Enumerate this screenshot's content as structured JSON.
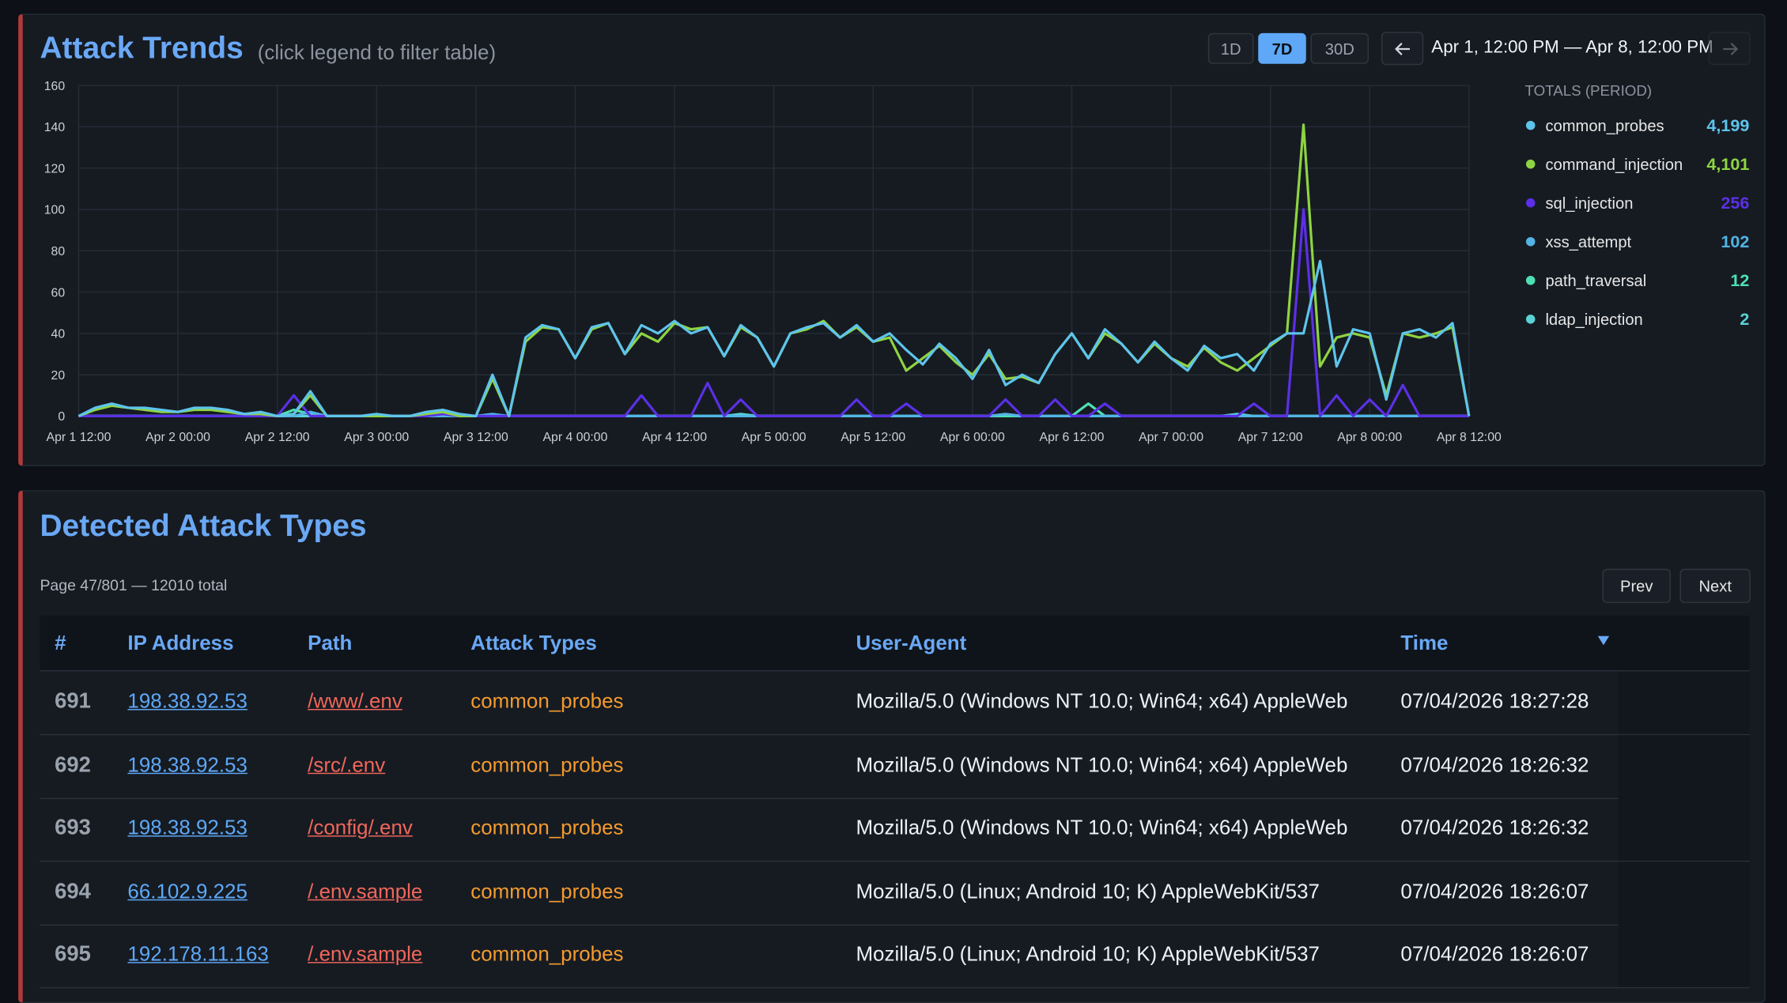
{
  "header": {
    "title": "Attack Trends",
    "subtitle": "(click legend to filter table)",
    "ranges": [
      "1D",
      "7D",
      "30D"
    ],
    "active_range": 1,
    "date_range": "Apr 1, 12:00 PM — Apr 8, 12:00 PM"
  },
  "chart_data": {
    "type": "line",
    "x": [
      "Apr 1 12:00",
      "Apr 1 14:00",
      "Apr 1 16:00",
      "Apr 1 18:00",
      "Apr 1 20:00",
      "Apr 1 22:00",
      "Apr 2 00:00",
      "Apr 2 02:00",
      "Apr 2 04:00",
      "Apr 2 06:00",
      "Apr 2 08:00",
      "Apr 2 10:00",
      "Apr 2 12:00",
      "Apr 2 14:00",
      "Apr 2 16:00",
      "Apr 2 18:00",
      "Apr 2 20:00",
      "Apr 2 22:00",
      "Apr 3 00:00",
      "Apr 3 02:00",
      "Apr 3 04:00",
      "Apr 3 06:00",
      "Apr 3 08:00",
      "Apr 3 10:00",
      "Apr 3 12:00",
      "Apr 3 14:00",
      "Apr 3 16:00",
      "Apr 3 18:00",
      "Apr 3 20:00",
      "Apr 3 22:00",
      "Apr 4 00:00",
      "Apr 4 02:00",
      "Apr 4 04:00",
      "Apr 4 06:00",
      "Apr 4 08:00",
      "Apr 4 10:00",
      "Apr 4 12:00",
      "Apr 4 14:00",
      "Apr 4 16:00",
      "Apr 4 18:00",
      "Apr 4 20:00",
      "Apr 4 22:00",
      "Apr 5 00:00",
      "Apr 5 02:00",
      "Apr 5 04:00",
      "Apr 5 06:00",
      "Apr 5 08:00",
      "Apr 5 10:00",
      "Apr 5 12:00",
      "Apr 5 14:00",
      "Apr 5 16:00",
      "Apr 5 18:00",
      "Apr 5 20:00",
      "Apr 5 22:00",
      "Apr 6 00:00",
      "Apr 6 02:00",
      "Apr 6 04:00",
      "Apr 6 06:00",
      "Apr 6 08:00",
      "Apr 6 10:00",
      "Apr 6 12:00",
      "Apr 6 14:00",
      "Apr 6 16:00",
      "Apr 6 18:00",
      "Apr 6 20:00",
      "Apr 6 22:00",
      "Apr 7 00:00",
      "Apr 7 02:00",
      "Apr 7 04:00",
      "Apr 7 06:00",
      "Apr 7 08:00",
      "Apr 7 10:00",
      "Apr 7 12:00",
      "Apr 7 14:00",
      "Apr 7 16:00",
      "Apr 7 18:00",
      "Apr 7 20:00",
      "Apr 7 22:00",
      "Apr 8 00:00",
      "Apr 8 02:00",
      "Apr 8 04:00",
      "Apr 8 06:00",
      "Apr 8 08:00",
      "Apr 8 10:00",
      "Apr 8 12:00"
    ],
    "xlim": [
      "Apr 1 12:00",
      "Apr 8 12:00"
    ],
    "xticks": [
      "Apr 1 12:00",
      "Apr 2 00:00",
      "Apr 2 12:00",
      "Apr 3 00:00",
      "Apr 3 12:00",
      "Apr 4 00:00",
      "Apr 4 12:00",
      "Apr 5 00:00",
      "Apr 5 12:00",
      "Apr 6 00:00",
      "Apr 6 12:00",
      "Apr 7 00:00",
      "Apr 7 12:00",
      "Apr 8 00:00",
      "Apr 8 12:00"
    ],
    "ylim": [
      0,
      160
    ],
    "yticks": [
      0,
      20,
      40,
      60,
      80,
      100,
      120,
      140,
      160
    ],
    "grid": true,
    "legend": "right",
    "legend_title": "TOTALS (PERIOD)",
    "series": [
      {
        "name": "common_probes",
        "color": "#5ec4ec",
        "total": {
          "value": 4199,
          "label": "4,199"
        },
        "values": [
          0,
          4,
          6,
          4,
          4,
          3,
          2,
          4,
          4,
          3,
          1,
          2,
          0,
          1,
          12,
          0,
          0,
          0,
          1,
          0,
          0,
          2,
          3,
          1,
          0,
          20,
          0,
          38,
          44,
          42,
          28,
          43,
          45,
          30,
          44,
          40,
          46,
          40,
          43,
          29,
          44,
          38,
          24,
          40,
          43,
          45,
          38,
          44,
          36,
          40,
          32,
          25,
          35,
          28,
          18,
          32,
          15,
          20,
          16,
          30,
          40,
          28,
          42,
          35,
          26,
          36,
          28,
          22,
          34,
          28,
          30,
          22,
          35,
          40,
          40,
          75,
          24,
          42,
          40,
          8,
          40,
          42,
          38,
          45,
          0
        ]
      },
      {
        "name": "command_injection",
        "color": "#8ed442",
        "total": {
          "value": 4101,
          "label": "4,101"
        },
        "values": [
          0,
          3,
          5,
          4,
          3,
          2,
          2,
          3,
          3,
          2,
          1,
          1,
          0,
          1,
          10,
          0,
          0,
          0,
          0,
          0,
          0,
          1,
          2,
          0,
          0,
          18,
          0,
          36,
          43,
          42,
          28,
          42,
          45,
          30,
          40,
          36,
          45,
          42,
          43,
          29,
          43,
          38,
          24,
          40,
          42,
          46,
          38,
          43,
          36,
          38,
          22,
          28,
          34,
          26,
          20,
          30,
          18,
          19,
          16,
          30,
          40,
          28,
          40,
          35,
          26,
          35,
          28,
          24,
          33,
          26,
          22,
          28,
          34,
          40,
          141,
          24,
          38,
          40,
          38,
          10,
          40,
          38,
          40,
          43,
          0
        ]
      },
      {
        "name": "sql_injection",
        "color": "#5b30e6",
        "total": {
          "value": 256,
          "label": "256"
        },
        "values": [
          0,
          0,
          0,
          0,
          0,
          0,
          0,
          0,
          0,
          0,
          0,
          0,
          0,
          10,
          0,
          0,
          0,
          0,
          0,
          0,
          0,
          0,
          1,
          0,
          0,
          0,
          0,
          0,
          0,
          0,
          0,
          0,
          0,
          0,
          10,
          0,
          0,
          0,
          16,
          0,
          8,
          0,
          0,
          0,
          0,
          0,
          0,
          8,
          0,
          0,
          6,
          0,
          0,
          0,
          0,
          0,
          8,
          0,
          0,
          8,
          0,
          0,
          6,
          0,
          0,
          0,
          0,
          0,
          0,
          0,
          0,
          6,
          0,
          0,
          100,
          0,
          10,
          0,
          8,
          0,
          15,
          0,
          0,
          0,
          0
        ]
      },
      {
        "name": "xss_attempt",
        "color": "#52b4e6",
        "total": {
          "value": 102,
          "label": "102"
        },
        "values": [
          0,
          0,
          0,
          0,
          0,
          0,
          0,
          0,
          0,
          0,
          0,
          0,
          0,
          0,
          2,
          0,
          0,
          0,
          0,
          0,
          0,
          0,
          0,
          0,
          0,
          1,
          0,
          0,
          0,
          0,
          0,
          0,
          0,
          0,
          0,
          0,
          0,
          0,
          0,
          0,
          0,
          0,
          0,
          0,
          0,
          0,
          0,
          0,
          0,
          0,
          0,
          0,
          0,
          0,
          0,
          0,
          1,
          0,
          0,
          0,
          0,
          0,
          0,
          0,
          0,
          0,
          0,
          0,
          0,
          0,
          0,
          0,
          0,
          0,
          0,
          0,
          0,
          0,
          0,
          0,
          0,
          0,
          0,
          0,
          0
        ]
      },
      {
        "name": "path_traversal",
        "color": "#4ee0b2",
        "total": {
          "value": 12,
          "label": "12"
        },
        "values": [
          0,
          0,
          0,
          0,
          0,
          0,
          0,
          0,
          0,
          0,
          0,
          0,
          0,
          3,
          1,
          0,
          0,
          0,
          0,
          0,
          0,
          0,
          0,
          0,
          0,
          0,
          0,
          0,
          0,
          0,
          0,
          0,
          0,
          0,
          0,
          0,
          0,
          0,
          0,
          0,
          0,
          0,
          0,
          0,
          0,
          0,
          0,
          0,
          0,
          0,
          0,
          0,
          0,
          0,
          0,
          0,
          0,
          0,
          0,
          0,
          0,
          6,
          0,
          0,
          0,
          0,
          0,
          0,
          0,
          0,
          0,
          0,
          0,
          0,
          0,
          0,
          0,
          0,
          0,
          0,
          0,
          0,
          0,
          0,
          0
        ]
      },
      {
        "name": "ldap_injection",
        "color": "#5ad2d6",
        "total": {
          "value": 2,
          "label": "2"
        },
        "values": [
          0,
          0,
          0,
          0,
          0,
          0,
          0,
          0,
          0,
          0,
          0,
          0,
          0,
          0,
          0,
          0,
          0,
          0,
          0,
          0,
          0,
          0,
          0,
          0,
          0,
          0,
          0,
          0,
          0,
          0,
          0,
          0,
          0,
          0,
          0,
          0,
          0,
          0,
          0,
          0,
          1,
          0,
          0,
          0,
          0,
          0,
          0,
          0,
          0,
          0,
          0,
          0,
          0,
          0,
          0,
          0,
          0,
          0,
          0,
          0,
          0,
          0,
          0,
          0,
          0,
          0,
          0,
          0,
          0,
          0,
          1,
          0,
          0,
          0,
          0,
          0,
          0,
          0,
          0,
          0,
          0,
          0,
          0,
          0,
          0
        ]
      }
    ]
  },
  "table_section": {
    "title": "Detected Attack Types",
    "page_info": "Page 47/801 — 12010 total",
    "prev": "Prev",
    "next": "Next",
    "columns": [
      "#",
      "IP Address",
      "Path",
      "Attack Types",
      "User-Agent",
      "Time"
    ],
    "rows": [
      [
        691,
        "198.38.92.53",
        "/www/.env",
        "common_probes",
        "Mozilla/5.0 (Windows NT 10.0; Win64; x64) AppleWeb",
        "07/04/2026 18:27:28"
      ],
      [
        692,
        "198.38.92.53",
        "/src/.env",
        "common_probes",
        "Mozilla/5.0 (Windows NT 10.0; Win64; x64) AppleWeb",
        "07/04/2026 18:26:32"
      ],
      [
        693,
        "198.38.92.53",
        "/config/.env",
        "common_probes",
        "Mozilla/5.0 (Windows NT 10.0; Win64; x64) AppleWeb",
        "07/04/2026 18:26:32"
      ],
      [
        694,
        "66.102.9.225",
        "/.env.sample",
        "common_probes",
        "Mozilla/5.0 (Linux; Android 10; K) AppleWebKit/537",
        "07/04/2026 18:26:07"
      ],
      [
        695,
        "192.178.11.163",
        "/.env.sample",
        "common_probes",
        "Mozilla/5.0 (Linux; Android 10; K) AppleWebKit/537",
        "07/04/2026 18:26:07"
      ]
    ]
  }
}
